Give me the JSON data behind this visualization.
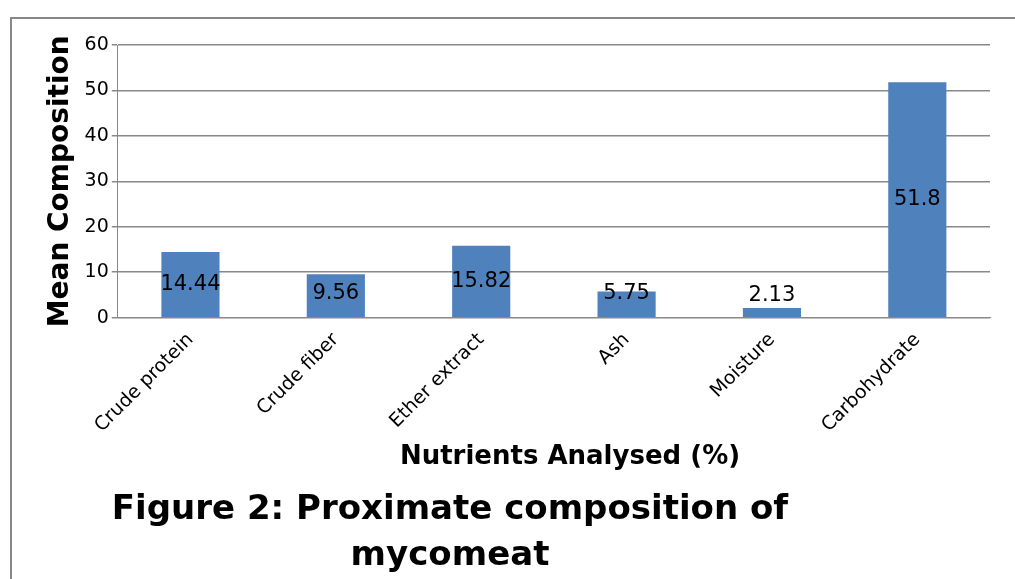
{
  "chart_data": {
    "type": "bar",
    "title": "Figure 2: Proximate composition of mycomeat",
    "xlabel": "Nutrients Analysed (%)",
    "ylabel": "Mean Composition",
    "categories": [
      "Crude protein",
      "Crude fiber",
      "Ether extract",
      "Ash",
      "Moisture",
      "Carbohydrate"
    ],
    "values": [
      14.44,
      9.56,
      15.82,
      5.75,
      2.13,
      51.8
    ],
    "color": "#4f81bd",
    "ylim": [
      0,
      60
    ],
    "yticks": [
      0,
      10,
      20,
      30,
      40,
      50,
      60
    ],
    "grid": "y",
    "data_labels": true
  }
}
